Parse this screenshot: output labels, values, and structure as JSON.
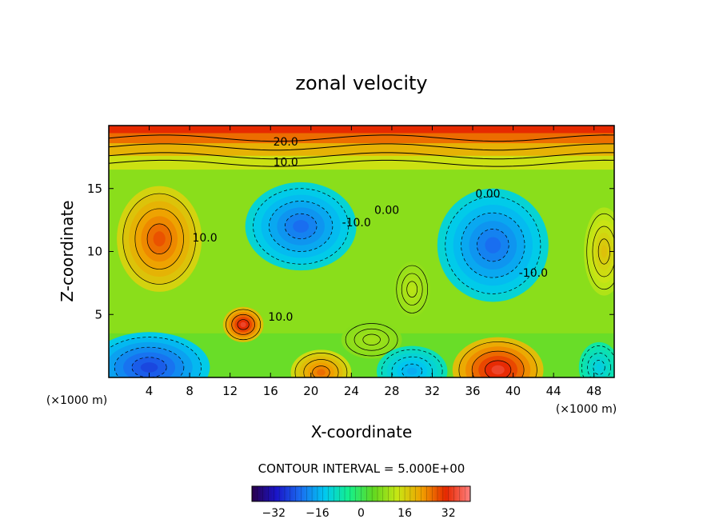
{
  "chart_data": {
    "type": "heatmap",
    "subtype": "filled-contour",
    "title": "zonal velocity",
    "xlabel": "X-coordinate",
    "ylabel": "Z-coordinate",
    "x_units": "(×1000 m)",
    "xlim": [
      0,
      50
    ],
    "ylim": [
      0,
      20
    ],
    "x_ticks": [
      4,
      8,
      12,
      16,
      20,
      24,
      28,
      32,
      36,
      40,
      44,
      48
    ],
    "y_ticks": [
      5,
      10,
      15
    ],
    "contour_interval_text": "CONTOUR INTERVAL = 5.000E+00",
    "contour_interval": 5.0,
    "contour_labels": [
      {
        "text": "20.0",
        "x": 17.5,
        "z": 18.4
      },
      {
        "text": "10.0",
        "x": 17.5,
        "z": 16.8
      },
      {
        "text": "0.00",
        "x": 27.5,
        "z": 13.0
      },
      {
        "text": "-10.0",
        "x": 24.5,
        "z": 12.0
      },
      {
        "text": "10.0",
        "x": 9.5,
        "z": 10.8
      },
      {
        "text": "10.0",
        "x": 17.0,
        "z": 4.5
      },
      {
        "text": "0.00",
        "x": 37.5,
        "z": 14.3
      },
      {
        "text": "-10.0",
        "x": 42.0,
        "z": 8.0
      }
    ],
    "colorbar": {
      "ticks": [
        -32,
        -16,
        0,
        16,
        32
      ],
      "range": [
        -40,
        40
      ],
      "colors": [
        "#2a004a",
        "#1a14c8",
        "#1a6cf0",
        "#00c8f0",
        "#14f08c",
        "#60d820",
        "#c8e614",
        "#f0a000",
        "#e62800",
        "#ff8080"
      ]
    },
    "field_features": [
      {
        "kind": "max",
        "x": 5,
        "z": 11,
        "value": 22,
        "rx": 4.2,
        "rz": 4.2
      },
      {
        "kind": "max",
        "x": 13.3,
        "z": 4.2,
        "value": 28,
        "rx": 2.0,
        "rz": 1.4
      },
      {
        "kind": "max",
        "x": 38.5,
        "z": 0.6,
        "value": 28,
        "rx": 4.5,
        "rz": 2.6
      },
      {
        "kind": "max",
        "x": 21,
        "z": 0.4,
        "value": 20,
        "rx": 3.0,
        "rz": 1.8
      },
      {
        "kind": "max",
        "x": 49,
        "z": 10,
        "value": 12,
        "rx": 2.0,
        "rz": 3.5
      },
      {
        "kind": "max",
        "x": 30,
        "z": 7,
        "value": 6,
        "rx": 1.8,
        "rz": 2.2
      },
      {
        "kind": "max",
        "x": 26,
        "z": 3,
        "value": 4,
        "rx": 3.0,
        "rz": 1.5
      },
      {
        "kind": "min",
        "x": 19,
        "z": 12,
        "value": -20,
        "rx": 5.5,
        "rz": 3.5
      },
      {
        "kind": "min",
        "x": 38,
        "z": 10.5,
        "value": -20,
        "rx": 5.5,
        "rz": 4.5
      },
      {
        "kind": "min",
        "x": 4,
        "z": 0.8,
        "value": -24,
        "rx": 6.0,
        "rz": 2.8
      },
      {
        "kind": "min",
        "x": 30,
        "z": 0.5,
        "value": -14,
        "rx": 3.5,
        "rz": 2.0
      },
      {
        "kind": "min",
        "x": 48.5,
        "z": 0.8,
        "value": -10,
        "rx": 2.0,
        "rz": 2.0
      }
    ]
  }
}
